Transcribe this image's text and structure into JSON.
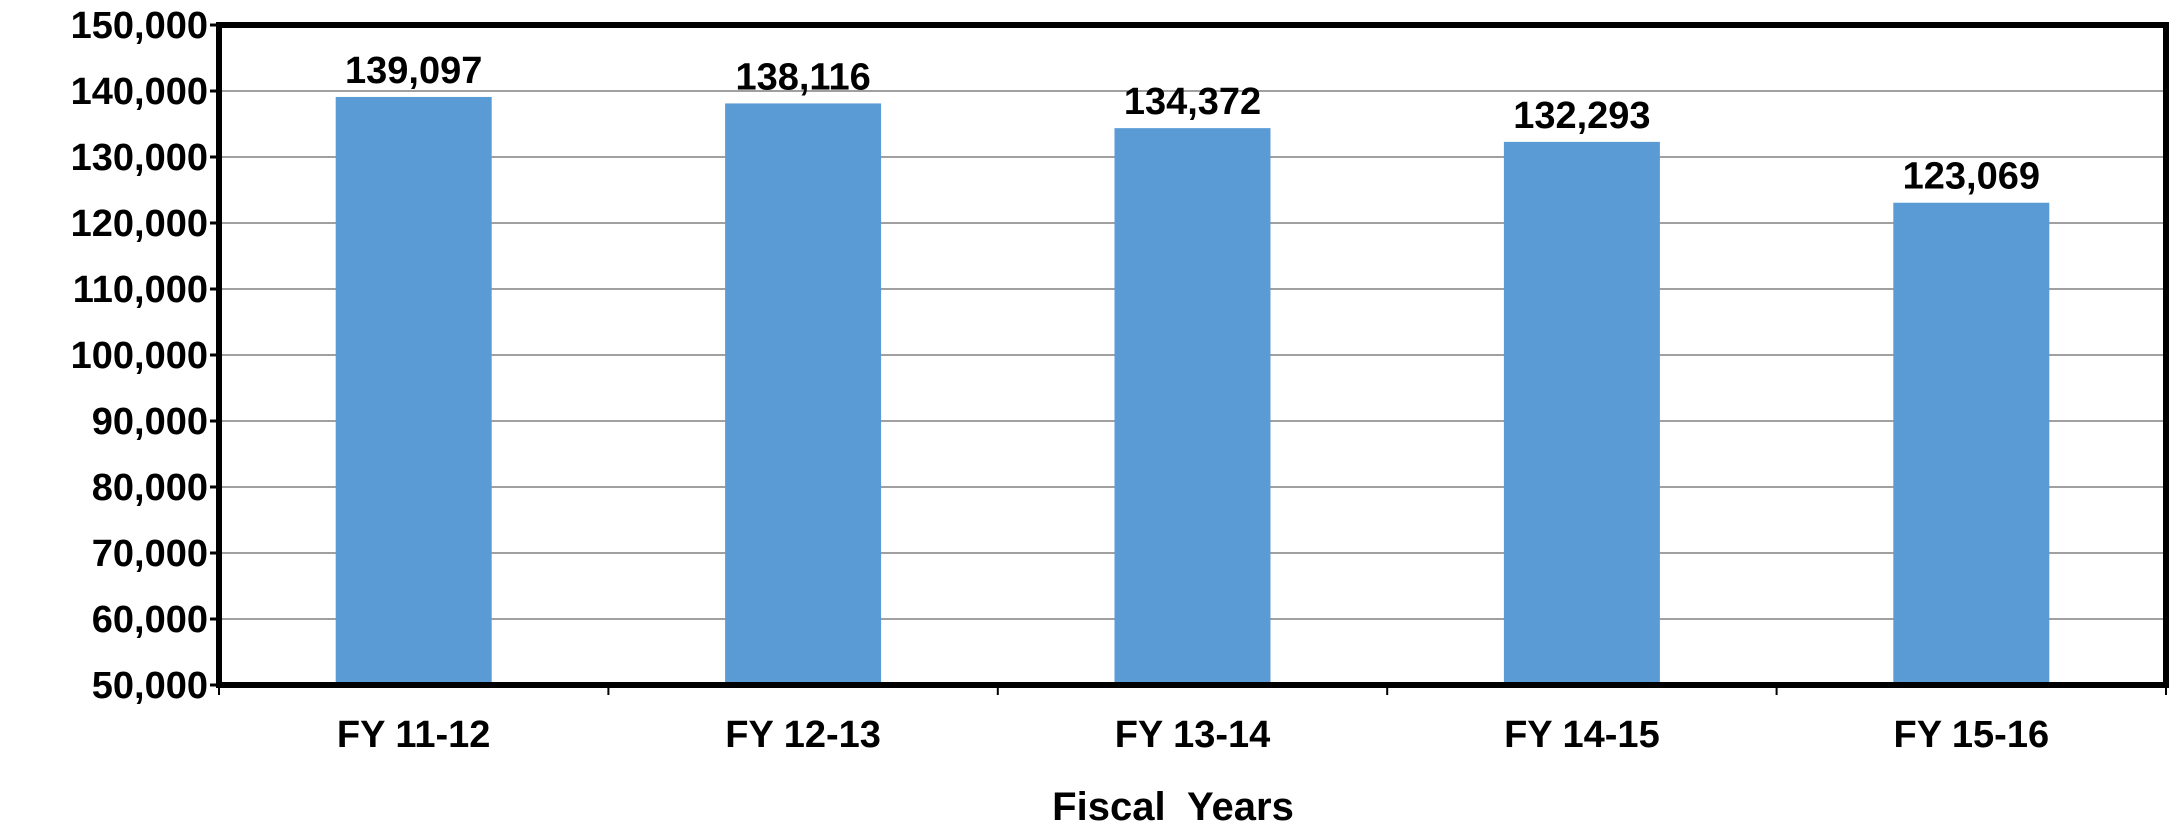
{
  "chart_data": {
    "type": "bar",
    "title": "",
    "xlabel": "Fiscal  Years",
    "ylabel": "",
    "categories": [
      "FY 11-12",
      "FY 12-13",
      "FY 13-14",
      "FY 14-15",
      "FY 15-16"
    ],
    "values": [
      139097,
      138116,
      134372,
      132293,
      123069
    ],
    "data_labels": [
      "139,097",
      "138,116",
      "134,372",
      "132,293",
      "123,069"
    ],
    "ylim": [
      50000,
      150000
    ],
    "yticks": [
      50000,
      60000,
      70000,
      80000,
      90000,
      100000,
      110000,
      120000,
      130000,
      140000,
      150000
    ],
    "ytick_labels": [
      "50,000",
      "60,000",
      "70,000",
      "80,000",
      "90,000",
      "100,000",
      "110,000",
      "120,000",
      "130,000",
      "140,000",
      "150,000"
    ],
    "grid": true,
    "legend": "none",
    "colors": {
      "bar": "#5B9BD5",
      "grid": "#808080",
      "frame": "#000000"
    }
  }
}
